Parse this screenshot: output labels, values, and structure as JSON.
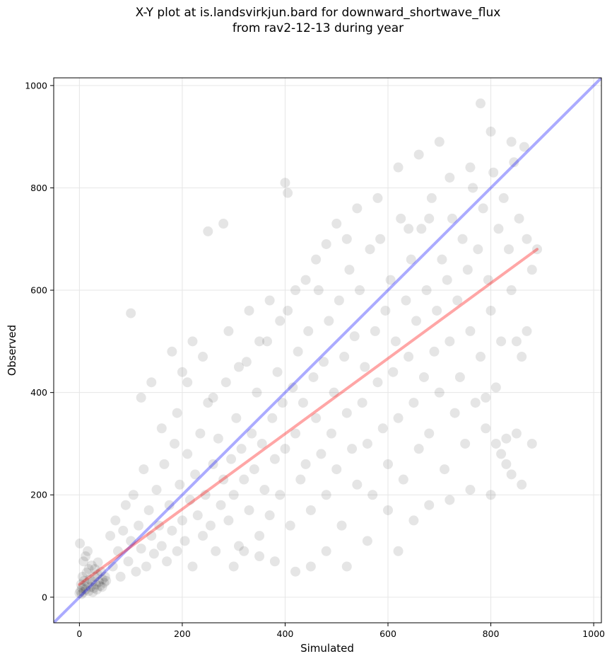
{
  "title": {
    "line1": "X-Y plot at is.landsvirkjun.bard for downward_shortwave_flux",
    "line2": "from rav2-12-13 during year"
  },
  "chart_data": {
    "type": "scatter",
    "title": "X-Y plot at is.landsvirkjun.bard for downward_shortwave_flux from rav2-12-13 during year",
    "xlabel": "Simulated",
    "ylabel": "Observed",
    "xlim": [
      -50,
      1015
    ],
    "ylim": [
      -50,
      1015
    ],
    "xticks": [
      0,
      200,
      400,
      600,
      800,
      1000
    ],
    "yticks": [
      0,
      200,
      400,
      600,
      800,
      1000
    ],
    "grid": true,
    "point_color": "#000000",
    "point_alpha": 0.1,
    "one_to_one_line": {
      "x": [
        -50,
        1015
      ],
      "y": [
        -50,
        1015
      ],
      "color": "#0000ff",
      "alpha": 0.33
    },
    "regression_line": {
      "x": [
        0,
        890
      ],
      "y": [
        25,
        680
      ],
      "color": "#ff0000",
      "alpha": 0.35
    },
    "series": [
      {
        "points": [
          [
            0,
            8
          ],
          [
            2,
            12
          ],
          [
            4,
            6
          ],
          [
            5,
            18
          ],
          [
            8,
            10
          ],
          [
            10,
            22
          ],
          [
            12,
            15
          ],
          [
            15,
            28
          ],
          [
            18,
            12
          ],
          [
            20,
            35
          ],
          [
            22,
            20
          ],
          [
            25,
            30
          ],
          [
            28,
            18
          ],
          [
            30,
            40
          ],
          [
            32,
            25
          ],
          [
            35,
            45
          ],
          [
            38,
            30
          ],
          [
            40,
            22
          ],
          [
            42,
            50
          ],
          [
            45,
            35
          ],
          [
            48,
            28
          ],
          [
            50,
            40
          ],
          [
            52,
            32
          ],
          [
            3,
            25
          ],
          [
            6,
            40
          ],
          [
            9,
            32
          ],
          [
            14,
            48
          ],
          [
            18,
            55
          ],
          [
            24,
            62
          ],
          [
            30,
            55
          ],
          [
            36,
            68
          ],
          [
            26,
            10
          ],
          [
            34,
            15
          ],
          [
            44,
            20
          ],
          [
            1,
            105
          ],
          [
            8,
            70
          ],
          [
            12,
            80
          ],
          [
            16,
            90
          ],
          [
            60,
            120
          ],
          [
            65,
            60
          ],
          [
            70,
            150
          ],
          [
            75,
            90
          ],
          [
            80,
            40
          ],
          [
            85,
            130
          ],
          [
            90,
            180
          ],
          [
            95,
            70
          ],
          [
            100,
            110
          ],
          [
            105,
            200
          ],
          [
            110,
            50
          ],
          [
            115,
            140
          ],
          [
            120,
            95
          ],
          [
            125,
            250
          ],
          [
            130,
            60
          ],
          [
            135,
            170
          ],
          [
            140,
            120
          ],
          [
            145,
            85
          ],
          [
            150,
            210
          ],
          [
            155,
            140
          ],
          [
            160,
            100
          ],
          [
            165,
            260
          ],
          [
            170,
            70
          ],
          [
            175,
            180
          ],
          [
            180,
            130
          ],
          [
            185,
            300
          ],
          [
            190,
            90
          ],
          [
            195,
            220
          ],
          [
            200,
            150
          ],
          [
            205,
            110
          ],
          [
            210,
            280
          ],
          [
            215,
            190
          ],
          [
            220,
            60
          ],
          [
            225,
            240
          ],
          [
            230,
            160
          ],
          [
            235,
            320
          ],
          [
            240,
            120
          ],
          [
            245,
            200
          ],
          [
            250,
            380
          ],
          [
            255,
            140
          ],
          [
            260,
            260
          ],
          [
            265,
            90
          ],
          [
            270,
            310
          ],
          [
            275,
            180
          ],
          [
            280,
            230
          ],
          [
            285,
            420
          ],
          [
            290,
            150
          ],
          [
            295,
            270
          ],
          [
            300,
            200
          ],
          [
            305,
            350
          ],
          [
            310,
            100
          ],
          [
            315,
            290
          ],
          [
            320,
            230
          ],
          [
            325,
            460
          ],
          [
            330,
            170
          ],
          [
            335,
            320
          ],
          [
            340,
            250
          ],
          [
            345,
            400
          ],
          [
            350,
            120
          ],
          [
            355,
            300
          ],
          [
            360,
            210
          ],
          [
            365,
            500
          ],
          [
            370,
            160
          ],
          [
            375,
            350
          ],
          [
            380,
            270
          ],
          [
            385,
            440
          ],
          [
            390,
            200
          ],
          [
            395,
            380
          ],
          [
            400,
            290
          ],
          [
            405,
            560
          ],
          [
            410,
            140
          ],
          [
            415,
            410
          ],
          [
            420,
            320
          ],
          [
            425,
            480
          ],
          [
            430,
            230
          ],
          [
            435,
            380
          ],
          [
            440,
            260
          ],
          [
            445,
            520
          ],
          [
            450,
            170
          ],
          [
            455,
            430
          ],
          [
            460,
            350
          ],
          [
            465,
            600
          ],
          [
            470,
            280
          ],
          [
            475,
            460
          ],
          [
            480,
            200
          ],
          [
            485,
            540
          ],
          [
            490,
            320
          ],
          [
            495,
            400
          ],
          [
            500,
            250
          ],
          [
            505,
            580
          ],
          [
            510,
            140
          ],
          [
            515,
            470
          ],
          [
            520,
            360
          ],
          [
            525,
            640
          ],
          [
            530,
            290
          ],
          [
            535,
            510
          ],
          [
            540,
            220
          ],
          [
            545,
            600
          ],
          [
            550,
            380
          ],
          [
            555,
            450
          ],
          [
            560,
            300
          ],
          [
            565,
            680
          ],
          [
            570,
            200
          ],
          [
            575,
            520
          ],
          [
            580,
            420
          ],
          [
            585,
            700
          ],
          [
            590,
            330
          ],
          [
            595,
            560
          ],
          [
            600,
            260
          ],
          [
            605,
            620
          ],
          [
            610,
            440
          ],
          [
            615,
            500
          ],
          [
            620,
            350
          ],
          [
            625,
            740
          ],
          [
            630,
            230
          ],
          [
            635,
            580
          ],
          [
            640,
            470
          ],
          [
            645,
            660
          ],
          [
            650,
            380
          ],
          [
            655,
            540
          ],
          [
            660,
            290
          ],
          [
            665,
            720
          ],
          [
            670,
            430
          ],
          [
            675,
            600
          ],
          [
            680,
            320
          ],
          [
            685,
            780
          ],
          [
            690,
            480
          ],
          [
            695,
            560
          ],
          [
            700,
            400
          ],
          [
            705,
            660
          ],
          [
            710,
            250
          ],
          [
            715,
            620
          ],
          [
            720,
            500
          ],
          [
            725,
            740
          ],
          [
            730,
            360
          ],
          [
            735,
            580
          ],
          [
            740,
            430
          ],
          [
            745,
            700
          ],
          [
            750,
            300
          ],
          [
            755,
            640
          ],
          [
            760,
            520
          ],
          [
            765,
            800
          ],
          [
            770,
            380
          ],
          [
            775,
            680
          ],
          [
            780,
            470
          ],
          [
            785,
            760
          ],
          [
            790,
            330
          ],
          [
            795,
            620
          ],
          [
            800,
            560
          ],
          [
            805,
            830
          ],
          [
            810,
            300
          ],
          [
            815,
            720
          ],
          [
            820,
            500
          ],
          [
            825,
            780
          ],
          [
            830,
            260
          ],
          [
            835,
            680
          ],
          [
            840,
            600
          ],
          [
            845,
            850
          ],
          [
            850,
            320
          ],
          [
            855,
            740
          ],
          [
            860,
            470
          ],
          [
            865,
            880
          ],
          [
            870,
            700
          ],
          [
            880,
            640
          ],
          [
            890,
            680
          ],
          [
            100,
            555
          ],
          [
            250,
            715
          ],
          [
            280,
            730
          ],
          [
            400,
            810
          ],
          [
            405,
            790
          ],
          [
            780,
            965
          ],
          [
            800,
            910
          ],
          [
            620,
            840
          ],
          [
            660,
            865
          ],
          [
            700,
            890
          ],
          [
            200,
            440
          ],
          [
            220,
            500
          ],
          [
            180,
            480
          ],
          [
            140,
            420
          ],
          [
            120,
            390
          ],
          [
            160,
            330
          ],
          [
            190,
            360
          ],
          [
            210,
            420
          ],
          [
            240,
            470
          ],
          [
            260,
            390
          ],
          [
            290,
            520
          ],
          [
            310,
            450
          ],
          [
            330,
            560
          ],
          [
            350,
            500
          ],
          [
            370,
            580
          ],
          [
            390,
            540
          ],
          [
            420,
            600
          ],
          [
            440,
            620
          ],
          [
            460,
            660
          ],
          [
            480,
            690
          ],
          [
            500,
            730
          ],
          [
            520,
            700
          ],
          [
            540,
            760
          ],
          [
            580,
            780
          ],
          [
            640,
            720
          ],
          [
            680,
            740
          ],
          [
            720,
            820
          ],
          [
            760,
            840
          ],
          [
            840,
            890
          ],
          [
            300,
            60
          ],
          [
            320,
            90
          ],
          [
            350,
            80
          ],
          [
            380,
            70
          ],
          [
            420,
            50
          ],
          [
            450,
            60
          ],
          [
            480,
            90
          ],
          [
            520,
            60
          ],
          [
            560,
            110
          ],
          [
            600,
            170
          ],
          [
            620,
            90
          ],
          [
            650,
            150
          ],
          [
            680,
            180
          ],
          [
            720,
            190
          ],
          [
            760,
            210
          ],
          [
            800,
            200
          ],
          [
            820,
            280
          ],
          [
            840,
            240
          ],
          [
            860,
            220
          ],
          [
            880,
            300
          ],
          [
            830,
            310
          ],
          [
            850,
            500
          ],
          [
            870,
            520
          ],
          [
            810,
            410
          ],
          [
            790,
            390
          ]
        ]
      }
    ]
  }
}
